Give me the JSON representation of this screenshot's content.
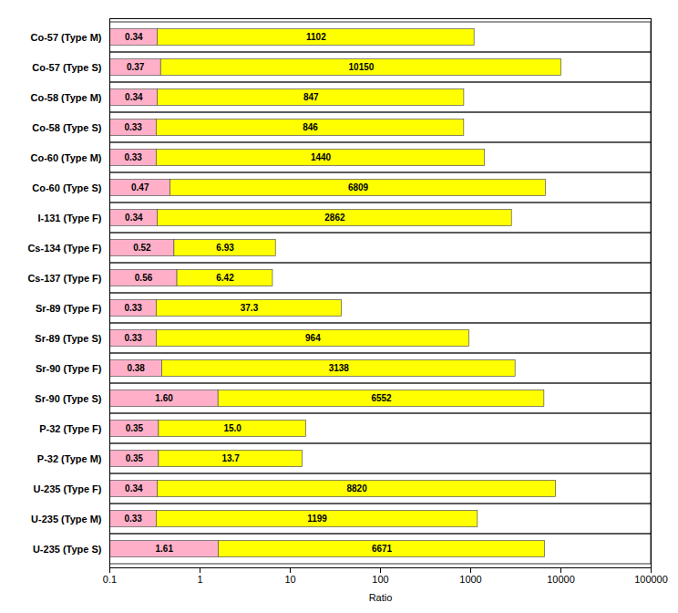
{
  "chart_data": {
    "type": "bar",
    "orientation": "horizontal",
    "xlabel": "Ratio",
    "categories": [
      "Co-57 (Type M)",
      "Co-57 (Type S)",
      "Co-58 (Type M)",
      "Co-58 (Type S)",
      "Co-60 (Type M)",
      "Co-60 (Type S)",
      "I-131 (Type F)",
      "Cs-134 (Type F)",
      "Cs-137 (Type F)",
      "Sr-89 (Type F)",
      "Sr-89 (Type S)",
      "Sr-90 (Type F)",
      "Sr-90 (Type S)",
      "P-32 (Type F)",
      "P-32 (Type M)",
      "U-235 (Type F)",
      "U-235 (Type M)",
      "U-235 (Type S)"
    ],
    "series": [
      {
        "color": "#FFB0C8",
        "values": [
          0.34,
          0.37,
          0.34,
          0.33,
          0.33,
          0.47,
          0.34,
          0.52,
          0.56,
          0.33,
          0.33,
          0.38,
          1.6,
          0.35,
          0.35,
          0.34,
          0.33,
          1.61
        ],
        "value_labels": [
          "0.34",
          "0.37",
          "0.34",
          "0.33",
          "0.33",
          "0.47",
          "0.34",
          "0.52",
          "0.56",
          "0.33",
          "0.33",
          "0.38",
          "1.60",
          "0.35",
          "0.35",
          "0.34",
          "0.33",
          "1.61"
        ]
      },
      {
        "color": "#FFFF00",
        "values": [
          1102,
          10150,
          847,
          846,
          1440,
          6809,
          2862,
          6.93,
          6.42,
          37.3,
          964,
          3138,
          6552,
          15.0,
          13.7,
          8820,
          1199,
          6671
        ],
        "value_labels": [
          "1102",
          "10150",
          "847",
          "846",
          "1440",
          "6809",
          "2862",
          "6.93",
          "6.42",
          "37.3",
          "964",
          "3138",
          "6552",
          "15.0",
          "13.7",
          "8820",
          "1199",
          "6671"
        ]
      }
    ],
    "xlim": [
      0.1,
      100000
    ],
    "xticks": [
      0.1,
      1,
      10,
      100,
      1000,
      10000,
      100000
    ],
    "log": "x",
    "grid": false,
    "data_labels": true
  }
}
